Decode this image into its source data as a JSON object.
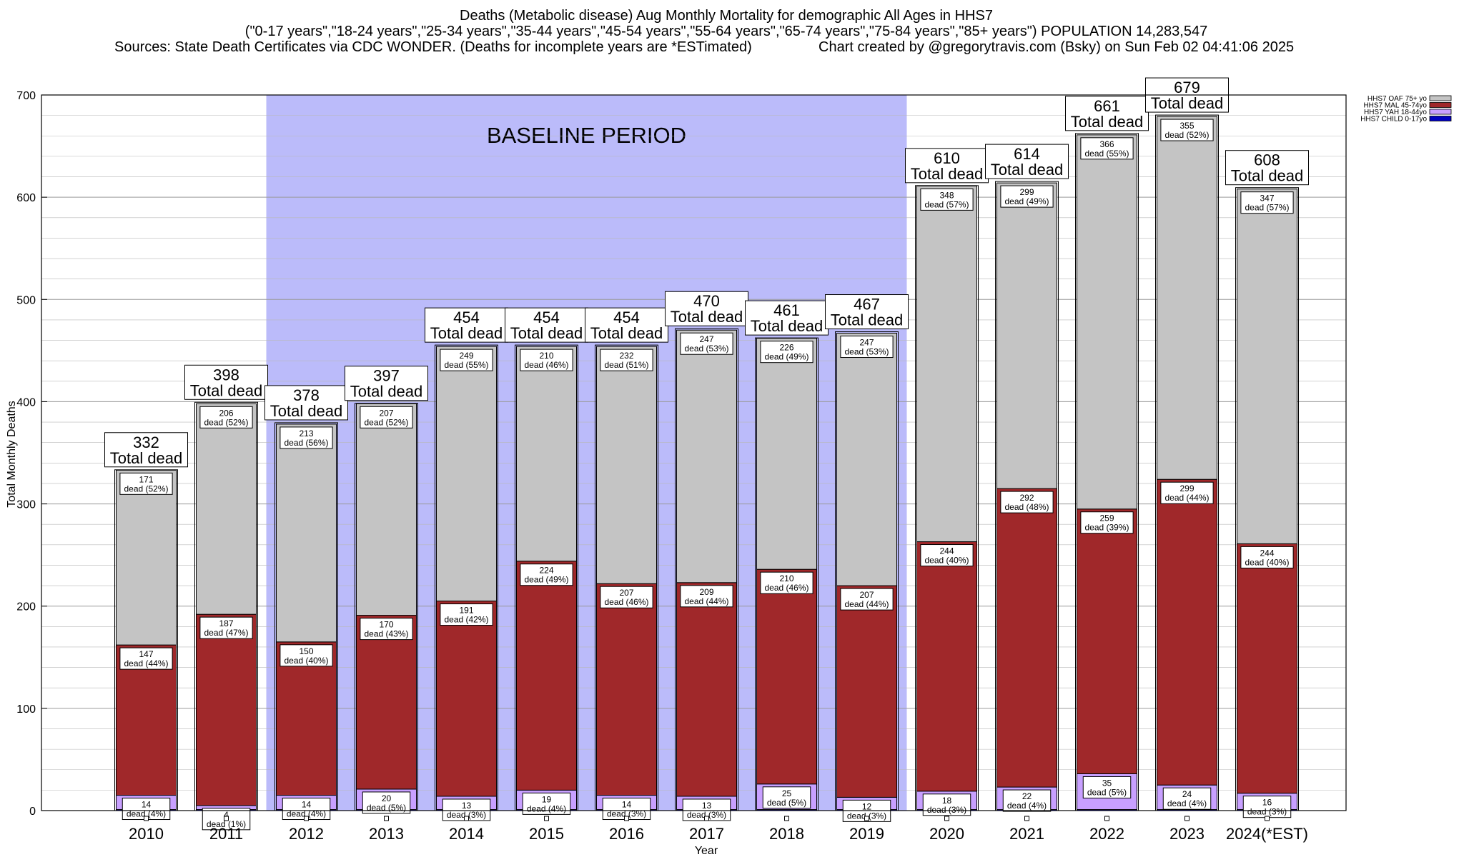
{
  "chart_data": {
    "type": "bar",
    "stacked": true,
    "title_lines": [
      "Deaths (Metabolic disease) Aug Monthly Mortality for demographic All Ages in HHS7",
      "(\"0-17 years\",\"18-24 years\",\"25-34 years\",\"35-44 years\",\"45-54 years\",\"55-64 years\",\"65-74 years\",\"75-84 years\",\"85+ years\") POPULATION 14,283,547"
    ],
    "sources": "Sources: State Death Certificates via CDC WONDER. (Deaths for incomplete years are *ESTimated)",
    "credit": "Chart created by @gregorytravis.com (Bsky) on Sun Feb 02 04:41:06 2025",
    "xlabel": "Year",
    "ylabel": "Total Monthly Deaths",
    "ylim": [
      0,
      700
    ],
    "yticks": [
      0,
      100,
      200,
      300,
      400,
      500,
      600,
      700
    ],
    "grid": true,
    "legend_position": "top-right",
    "baseline": {
      "label": "BASELINE PERIOD",
      "from": "2012",
      "to": "2019",
      "color": "#bbbbfa"
    },
    "total_suffix": "Total dead",
    "count_suffix": "dead",
    "categories": [
      "2010",
      "2011",
      "2012",
      "2013",
      "2014",
      "2015",
      "2016",
      "2017",
      "2018",
      "2019",
      "2020",
      "2021",
      "2022",
      "2023",
      "2024(*EST)"
    ],
    "totals": [
      332,
      398,
      378,
      397,
      454,
      454,
      454,
      470,
      461,
      467,
      610,
      614,
      661,
      679,
      608
    ],
    "series": [
      {
        "name": "HHS7 CHILD 0-17yo",
        "color": "#0000c0",
        "values": [
          1,
          1,
          1,
          1,
          1,
          1,
          1,
          1,
          1,
          1,
          1,
          1,
          1,
          1,
          1
        ],
        "labels": [
          "",
          "",
          "",
          "",
          "",
          "",
          "",
          "",
          "",
          "",
          "",
          "",
          "",
          "",
          ""
        ]
      },
      {
        "name": "HHS7 YAH 18-44yo",
        "color": "#c8a0ff",
        "values": [
          14,
          4,
          14,
          20,
          13,
          19,
          14,
          13,
          25,
          12,
          18,
          22,
          35,
          24,
          16
        ],
        "labels": [
          "(4%)",
          "(1%)",
          "(4%)",
          "(5%)",
          "(3%)",
          "(4%)",
          "(3%)",
          "(3%)",
          "(5%)",
          "(3%)",
          "(3%)",
          "(4%)",
          "(5%)",
          "(4%)",
          "(3%)"
        ]
      },
      {
        "name": "HHS7 MAL 45-74yo",
        "color": "#a0282a",
        "values": [
          147,
          187,
          150,
          170,
          191,
          224,
          207,
          209,
          210,
          207,
          244,
          292,
          259,
          299,
          244
        ],
        "labels": [
          "(44%)",
          "(47%)",
          "(40%)",
          "(43%)",
          "(42%)",
          "(49%)",
          "(46%)",
          "(44%)",
          "(46%)",
          "(44%)",
          "(40%)",
          "(48%)",
          "(39%)",
          "(44%)",
          "(40%)"
        ]
      },
      {
        "name": "HHS7 OAF 75+ yo",
        "color": "#c4c4c4",
        "values": [
          171,
          206,
          213,
          207,
          249,
          210,
          232,
          247,
          226,
          247,
          348,
          299,
          366,
          355,
          347
        ],
        "labels": [
          "(52%)",
          "(52%)",
          "(56%)",
          "(52%)",
          "(55%)",
          "(46%)",
          "(51%)",
          "(53%)",
          "(49%)",
          "(53%)",
          "(57%)",
          "(49%)",
          "(55%)",
          "(52%)",
          "(57%)"
        ]
      }
    ]
  }
}
